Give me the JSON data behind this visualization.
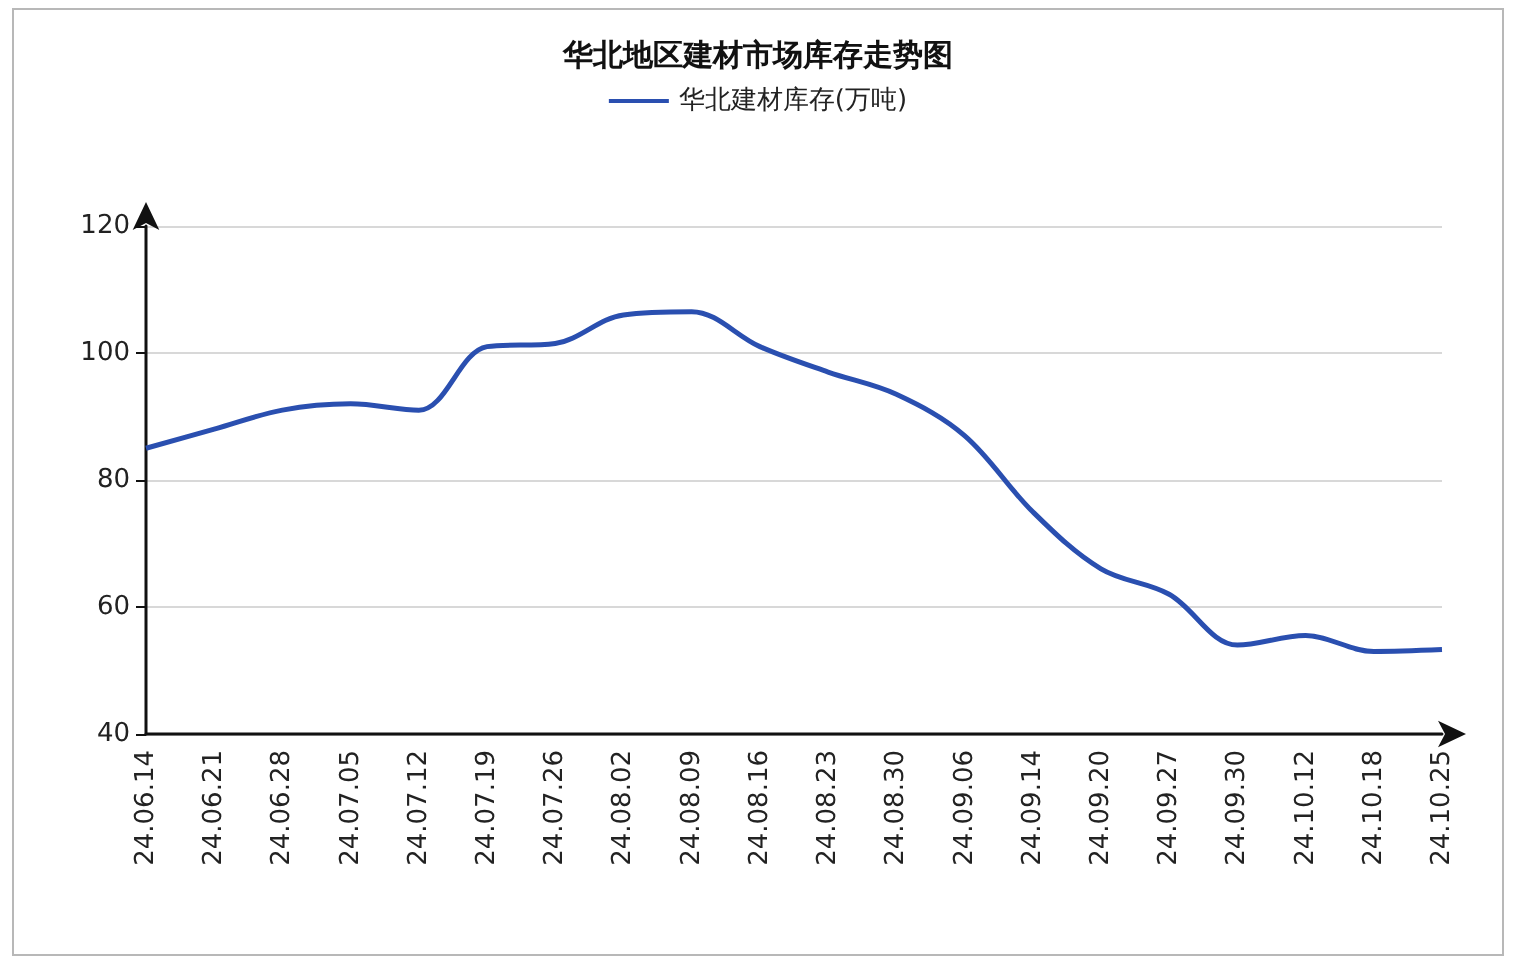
{
  "chart_data": {
    "type": "line",
    "title": "华北地区建材市场库存走势图",
    "categories": [
      "24.06.14",
      "24.06.21",
      "24.06.28",
      "24.07.05",
      "24.07.12",
      "24.07.19",
      "24.07.26",
      "24.08.02",
      "24.08.09",
      "24.08.16",
      "24.08.23",
      "24.08.30",
      "24.09.06",
      "24.09.14",
      "24.09.20",
      "24.09.27",
      "24.09.30",
      "24.10.12",
      "24.10.18",
      "24.10.25"
    ],
    "series": [
      {
        "name": "华北建材库存(万吨)",
        "color": "#2a4fb0",
        "values": [
          85,
          88,
          91,
          92,
          91,
          101,
          101.5,
          106,
          106.5,
          101,
          97,
          93.5,
          87,
          75,
          66,
          62,
          54,
          55.5,
          53,
          53.3
        ]
      }
    ],
    "ylim": [
      40,
      120
    ],
    "yticks": [
      40,
      60,
      80,
      100,
      120
    ],
    "grid": "y",
    "legend": "top",
    "marker": "none",
    "line_style": "solid"
  }
}
